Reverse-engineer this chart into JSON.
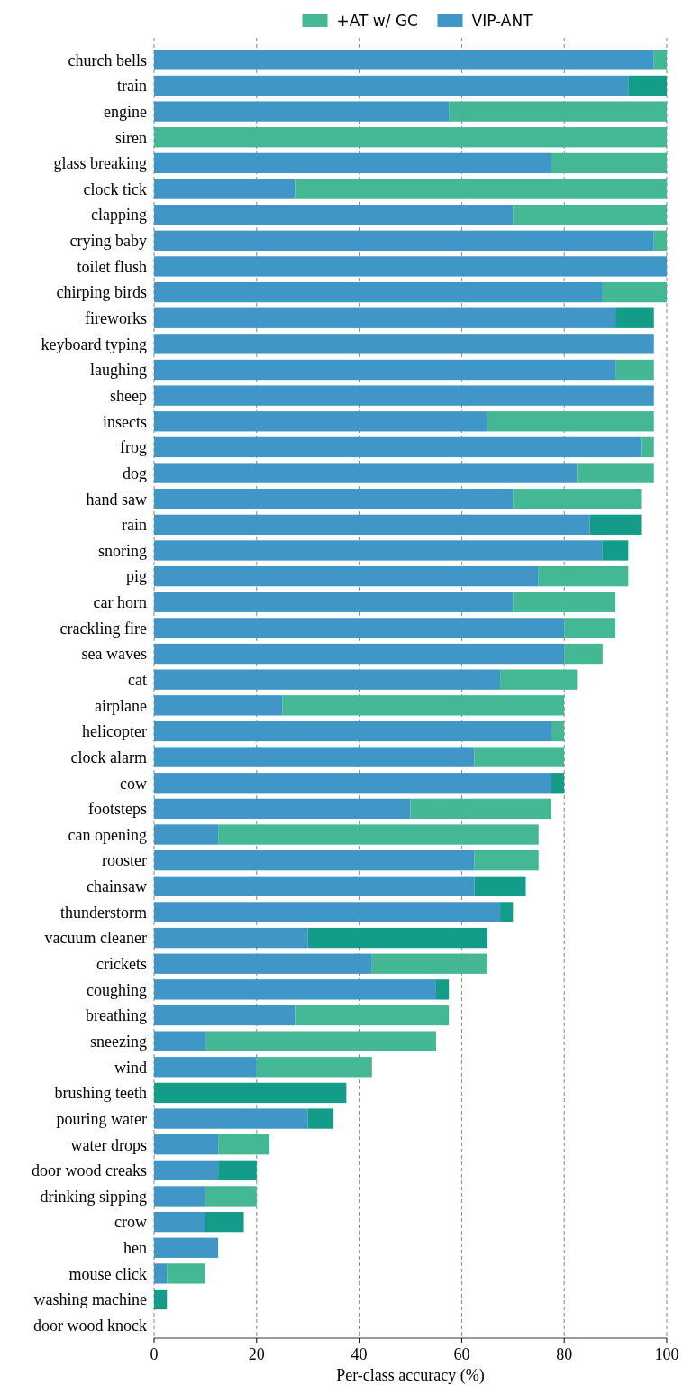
{
  "chart_data": {
    "type": "bar",
    "orientation": "horizontal",
    "stacked": true,
    "xlabel": "Per-class accuracy (%)",
    "xlim": [
      0,
      100
    ],
    "xticks": [
      0,
      20,
      40,
      60,
      80,
      100
    ],
    "grid": "x",
    "legend": "top",
    "categories": [
      "church bells",
      "train",
      "engine",
      "siren",
      "glass breaking",
      "clock tick",
      "clapping",
      "crying baby",
      "toilet flush",
      "chirping birds",
      "fireworks",
      "keyboard typing",
      "laughing",
      "sheep",
      "insects",
      "frog",
      "dog",
      "hand saw",
      "rain",
      "snoring",
      "pig",
      "car horn",
      "crackling fire",
      "sea waves",
      "cat",
      "airplane",
      "helicopter",
      "clock alarm",
      "cow",
      "footsteps",
      "can opening",
      "rooster",
      "chainsaw",
      "thunderstorm",
      "vacuum cleaner",
      "crickets",
      "coughing",
      "breathing",
      "sneezing",
      "wind",
      "brushing teeth",
      "pouring water",
      "water drops",
      "door wood creaks",
      "drinking sipping",
      "crow",
      "hen",
      "mouse click",
      "washing machine",
      "door wood knock"
    ],
    "series": [
      {
        "name": "VIP-ANT",
        "color": "#4196c8",
        "values": [
          97.5,
          92.5,
          57.5,
          0,
          77.5,
          27.5,
          70,
          97.5,
          100,
          87.5,
          90,
          97.5,
          90,
          97.5,
          65,
          95,
          82.5,
          70,
          85,
          87.5,
          75,
          70,
          80,
          80,
          67.5,
          25,
          77.5,
          62.5,
          77.5,
          50,
          12.5,
          62.5,
          62.5,
          67.5,
          30,
          42.5,
          55,
          27.5,
          10,
          20,
          0,
          30,
          12.5,
          12.5,
          10,
          10,
          12.5,
          2.5,
          0,
          0
        ]
      },
      {
        "name": "+AT w/ GC",
        "color": "#44b894",
        "colors": [
          "#44b894",
          "#139c88",
          "#44b894",
          "#44b894",
          "#44b894",
          "#44b894",
          "#44b894",
          "#44b894",
          "#44b894",
          "#44b894",
          "#139c88",
          "#44b894",
          "#44b894",
          "#44b894",
          "#44b894",
          "#44b894",
          "#44b894",
          "#44b894",
          "#139c88",
          "#139c88",
          "#44b894",
          "#44b894",
          "#44b894",
          "#44b894",
          "#44b894",
          "#44b894",
          "#44b894",
          "#44b894",
          "#139c88",
          "#44b894",
          "#44b894",
          "#44b894",
          "#139c88",
          "#139c88",
          "#139c88",
          "#44b894",
          "#139c88",
          "#44b894",
          "#44b894",
          "#44b894",
          "#139c88",
          "#139c88",
          "#44b894",
          "#139c88",
          "#44b894",
          "#139c88",
          "#44b894",
          "#44b894",
          "#139c88",
          "#44b894"
        ],
        "values": [
          2.5,
          7.5,
          42.5,
          100,
          22.5,
          72.5,
          30,
          2.5,
          0,
          12.5,
          7.5,
          0,
          7.5,
          0,
          32.5,
          2.5,
          15,
          25,
          10,
          5,
          17.5,
          20,
          10,
          7.5,
          15,
          55,
          2.5,
          17.5,
          2.5,
          27.5,
          62.5,
          12.5,
          10,
          2.5,
          35,
          22.5,
          2.5,
          30,
          45,
          22.5,
          37.5,
          5,
          10,
          7.5,
          10,
          7.5,
          0,
          7.5,
          2.5,
          0
        ]
      }
    ]
  }
}
